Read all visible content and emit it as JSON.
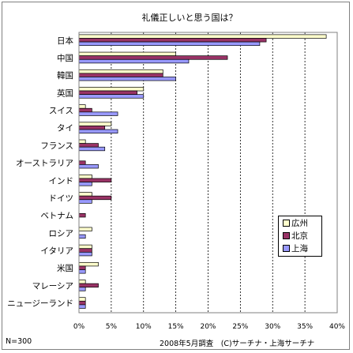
{
  "chart_data": {
    "type": "bar",
    "orientation": "horizontal",
    "title": "礼儀正しいと思う国は？",
    "categories": [
      "日本",
      "中国",
      "韓国",
      "英国",
      "スイス",
      "タイ",
      "フランス",
      "オーストラリア",
      "インド",
      "ドイツ",
      "ベトナム",
      "ロシア",
      "イタリア",
      "米国",
      "マレーシア",
      "ニュージーランド"
    ],
    "series": [
      {
        "name": "広州",
        "color": "#ffffcc",
        "values": [
          38.3,
          15.0,
          13.0,
          10.0,
          1.0,
          5.0,
          1.0,
          0.0,
          2.0,
          2.0,
          0.0,
          2.0,
          2.0,
          3.0,
          1.0,
          1.0
        ]
      },
      {
        "name": "北京",
        "color": "#993366",
        "values": [
          29.0,
          23.0,
          13.0,
          9.0,
          2.0,
          4.0,
          3.0,
          1.0,
          5.0,
          5.0,
          1.0,
          0.0,
          2.0,
          1.0,
          3.0,
          1.0
        ]
      },
      {
        "name": "上海",
        "color": "#9999ff",
        "values": [
          28.0,
          17.0,
          15.0,
          10.0,
          6.0,
          6.0,
          4.0,
          3.0,
          2.0,
          2.0,
          0.0,
          1.0,
          2.0,
          1.0,
          1.0,
          1.0
        ]
      }
    ],
    "xlim": [
      0,
      40
    ],
    "xticks": [
      "0%",
      "5%",
      "10%",
      "15%",
      "20%",
      "25%",
      "30%",
      "35%",
      "40%"
    ],
    "grid": "vertical dashed",
    "legend_position": "lower-right"
  },
  "footer": {
    "sample": "N=300",
    "source": "2008年5月調査　(C)サーチナ・上海サーチナ"
  }
}
